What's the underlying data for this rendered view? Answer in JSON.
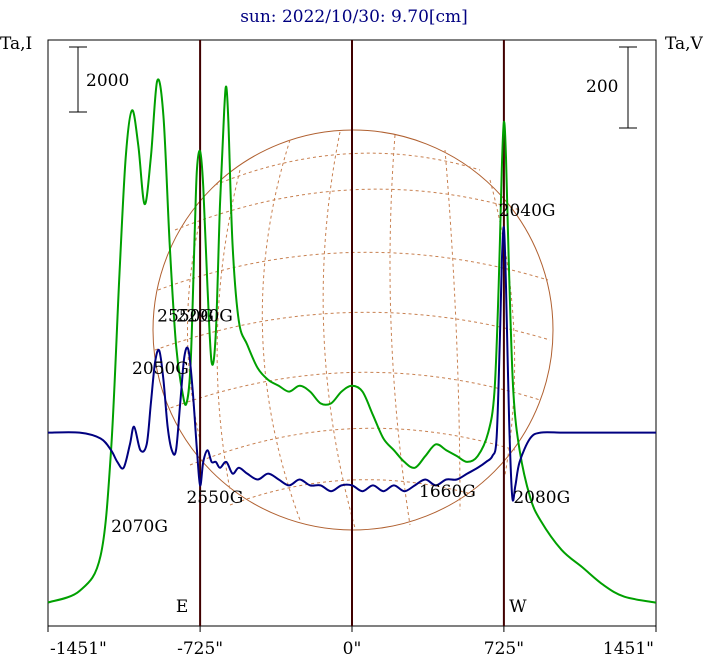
{
  "chart_data": {
    "type": "line",
    "title": "sun: 2022/10/30: 9.70[cm]",
    "left_axis_label": "Ta,I",
    "right_axis_label": "Ta,V",
    "left_scale_label": "2000",
    "right_scale_label": "200",
    "x_ticks": [
      "-1451\"",
      "-725\"",
      "0\"",
      "725\"",
      "1451\""
    ],
    "x_tick_values": [
      -1451,
      -725,
      0,
      725,
      1451
    ],
    "xlim": [
      -1451,
      1451
    ],
    "vertical_lines": [
      {
        "x": -725,
        "label": "E"
      },
      {
        "x": 0
      },
      {
        "x": 725,
        "label": "W"
      }
    ],
    "series": [
      {
        "color": "#00a000",
        "points": [
          [
            -1451,
            0.04
          ],
          [
            -1300,
            0.06
          ],
          [
            -1200,
            0.12
          ],
          [
            -1150,
            0.3
          ],
          [
            -1110,
            0.6
          ],
          [
            -1080,
            0.8
          ],
          [
            -1050,
            0.88
          ],
          [
            -1020,
            0.82
          ],
          [
            -990,
            0.72
          ],
          [
            -960,
            0.8
          ],
          [
            -930,
            0.93
          ],
          [
            -900,
            0.87
          ],
          [
            -870,
            0.65
          ],
          [
            -840,
            0.48
          ],
          [
            -810,
            0.4
          ],
          [
            -790,
            0.38
          ],
          [
            -770,
            0.45
          ],
          [
            -750,
            0.68
          ],
          [
            -740,
            0.78
          ],
          [
            -725,
            0.81
          ],
          [
            -710,
            0.75
          ],
          [
            -690,
            0.58
          ],
          [
            -670,
            0.45
          ],
          [
            -650,
            0.5
          ],
          [
            -630,
            0.72
          ],
          [
            -610,
            0.88
          ],
          [
            -600,
            0.92
          ],
          [
            -590,
            0.86
          ],
          [
            -570,
            0.65
          ],
          [
            -540,
            0.52
          ],
          [
            -500,
            0.48
          ],
          [
            -450,
            0.44
          ],
          [
            -400,
            0.42
          ],
          [
            -350,
            0.41
          ],
          [
            -300,
            0.4
          ],
          [
            -250,
            0.41
          ],
          [
            -200,
            0.4
          ],
          [
            -150,
            0.38
          ],
          [
            -100,
            0.38
          ],
          [
            -50,
            0.4
          ],
          [
            0,
            0.41
          ],
          [
            50,
            0.4
          ],
          [
            100,
            0.36
          ],
          [
            150,
            0.32
          ],
          [
            200,
            0.3
          ],
          [
            250,
            0.28
          ],
          [
            300,
            0.27
          ],
          [
            350,
            0.29
          ],
          [
            400,
            0.31
          ],
          [
            450,
            0.3
          ],
          [
            500,
            0.29
          ],
          [
            550,
            0.28
          ],
          [
            600,
            0.29
          ],
          [
            650,
            0.33
          ],
          [
            680,
            0.4
          ],
          [
            700,
            0.58
          ],
          [
            715,
            0.78
          ],
          [
            725,
            0.86
          ],
          [
            735,
            0.8
          ],
          [
            750,
            0.6
          ],
          [
            770,
            0.4
          ],
          [
            800,
            0.3
          ],
          [
            850,
            0.22
          ],
          [
            900,
            0.18
          ],
          [
            1000,
            0.13
          ],
          [
            1100,
            0.1
          ],
          [
            1200,
            0.07
          ],
          [
            1300,
            0.05
          ],
          [
            1451,
            0.04
          ]
        ]
      },
      {
        "color": "#000080",
        "points": [
          [
            -1451,
            0.33
          ],
          [
            -1300,
            0.33
          ],
          [
            -1200,
            0.32
          ],
          [
            -1150,
            0.3
          ],
          [
            -1120,
            0.28
          ],
          [
            -1090,
            0.27
          ],
          [
            -1060,
            0.31
          ],
          [
            -1040,
            0.34
          ],
          [
            -1010,
            0.3
          ],
          [
            -980,
            0.31
          ],
          [
            -960,
            0.38
          ],
          [
            -940,
            0.45
          ],
          [
            -920,
            0.47
          ],
          [
            -900,
            0.42
          ],
          [
            -880,
            0.34
          ],
          [
            -860,
            0.3
          ],
          [
            -840,
            0.3
          ],
          [
            -820,
            0.38
          ],
          [
            -800,
            0.46
          ],
          [
            -780,
            0.47
          ],
          [
            -760,
            0.4
          ],
          [
            -740,
            0.3
          ],
          [
            -725,
            0.24
          ],
          [
            -710,
            0.28
          ],
          [
            -690,
            0.3
          ],
          [
            -670,
            0.28
          ],
          [
            -650,
            0.28
          ],
          [
            -630,
            0.27
          ],
          [
            -600,
            0.28
          ],
          [
            -570,
            0.26
          ],
          [
            -540,
            0.27
          ],
          [
            -500,
            0.26
          ],
          [
            -450,
            0.25
          ],
          [
            -400,
            0.26
          ],
          [
            -350,
            0.25
          ],
          [
            -300,
            0.24
          ],
          [
            -250,
            0.25
          ],
          [
            -200,
            0.24
          ],
          [
            -150,
            0.24
          ],
          [
            -100,
            0.23
          ],
          [
            -50,
            0.24
          ],
          [
            0,
            0.24
          ],
          [
            50,
            0.23
          ],
          [
            100,
            0.24
          ],
          [
            150,
            0.23
          ],
          [
            200,
            0.24
          ],
          [
            250,
            0.23
          ],
          [
            300,
            0.24
          ],
          [
            350,
            0.25
          ],
          [
            400,
            0.24
          ],
          [
            450,
            0.25
          ],
          [
            500,
            0.25
          ],
          [
            550,
            0.26
          ],
          [
            600,
            0.27
          ],
          [
            640,
            0.28
          ],
          [
            670,
            0.29
          ],
          [
            690,
            0.32
          ],
          [
            705,
            0.48
          ],
          [
            715,
            0.62
          ],
          [
            725,
            0.68
          ],
          [
            735,
            0.58
          ],
          [
            750,
            0.35
          ],
          [
            765,
            0.22
          ],
          [
            780,
            0.24
          ],
          [
            800,
            0.28
          ],
          [
            850,
            0.32
          ],
          [
            900,
            0.33
          ],
          [
            1000,
            0.33
          ],
          [
            1100,
            0.33
          ],
          [
            1200,
            0.33
          ],
          [
            1300,
            0.33
          ],
          [
            1451,
            0.33
          ]
        ]
      }
    ],
    "annotations": [
      {
        "text": "2050G",
        "x": -1050,
        "y": 0.43
      },
      {
        "text": "2550G",
        "x": -930,
        "y": 0.52
      },
      {
        "text": "2290G",
        "x": -840,
        "y": 0.52
      },
      {
        "text": "2040G",
        "x": 700,
        "y": 0.7
      },
      {
        "text": "2070G",
        "x": -1150,
        "y": 0.16
      },
      {
        "text": "2550G",
        "x": -790,
        "y": 0.21
      },
      {
        "text": "1660G",
        "x": 320,
        "y": 0.22
      },
      {
        "text": "2080G",
        "x": 770,
        "y": 0.21
      }
    ]
  }
}
